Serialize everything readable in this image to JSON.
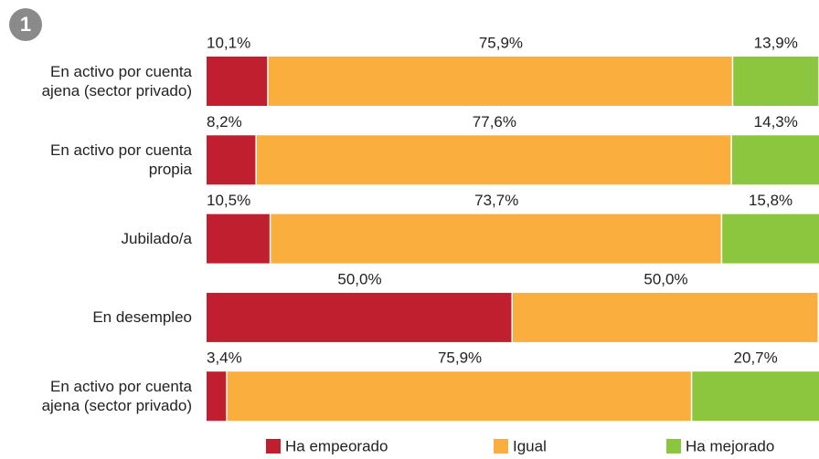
{
  "chart_data": {
    "type": "stacked-bar-horizontal",
    "badge": "1",
    "categories": [
      "En activo por cuenta ajena (sector privado)",
      "En activo por cuenta propia",
      "Jubilado/a",
      "En desempleo",
      "En activo por cuenta ajena (sector privado)"
    ],
    "series": [
      {
        "name": "Ha empeorado",
        "color": "#c01f2f",
        "values": [
          10.1,
          8.2,
          10.5,
          50.0,
          3.4
        ],
        "value_labels": [
          "10,1%",
          "8,2%",
          "10,5%",
          "50,0%",
          "3,4%"
        ]
      },
      {
        "name": "Igual",
        "color": "#f9ae3e",
        "values": [
          75.9,
          77.6,
          73.7,
          50.0,
          75.9
        ],
        "value_labels": [
          "75,9%",
          "77,6%",
          "73,7%",
          "50,0%",
          "75,9%"
        ]
      },
      {
        "name": "Ha mejorado",
        "color": "#8cc63f",
        "values": [
          13.9,
          14.3,
          15.8,
          null,
          20.7
        ],
        "value_labels": [
          "13,9%",
          "14,3%",
          "15,8%",
          null,
          "20,7%"
        ]
      }
    ],
    "xlim": [
      0,
      100
    ]
  }
}
